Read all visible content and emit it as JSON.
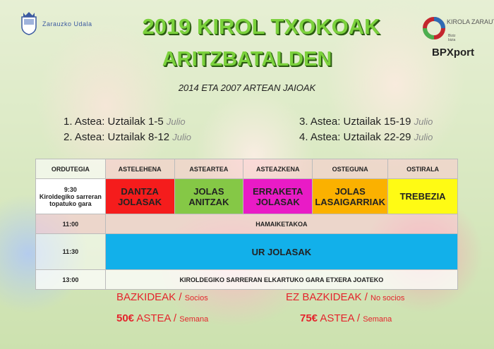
{
  "logos": {
    "left": "Zarauzko Udala",
    "right_top": "KIROLA ZARAUTZ",
    "right_sub": "Biziz bizia",
    "right_bottom": "BPXport"
  },
  "title": "2019 KIROL TXOKOAK",
  "subtitle": "ARITZBATALDEN",
  "ages": "2014 ETA 2007 ARTEAN JAIOAK",
  "weeks": [
    {
      "label": "1. Astea: Uztailak 1-5",
      "es": "Julio"
    },
    {
      "label": "2. Astea: Uztailak 8-12",
      "es": "Julio"
    },
    {
      "label": "3. Astea: Uztailak 15-19",
      "es": "Julio"
    },
    {
      "label": "4. Astea: Uztailak 22-29",
      "es": "Julio"
    }
  ],
  "table": {
    "headers": [
      "ORDUTEGIA",
      "ASTELEHENA",
      "ASTEARTEA",
      "ASTEAZKENA",
      "OSTEGUNA",
      "OSTIRALA"
    ],
    "row1": {
      "time": "9:30",
      "note": "Kiroldegiko sarreran topatuko gara",
      "activities": [
        {
          "l1": "DANTZA",
          "l2": "JOLASAK",
          "color": "#f51c1c"
        },
        {
          "l1": "JOLAS",
          "l2": "ANITZAK",
          "color": "#85c846"
        },
        {
          "l1": "ERRAKETA",
          "l2": "JOLASAK",
          "color": "#e91bc6"
        },
        {
          "l1": "JOLAS",
          "l2": "LASAIGARRIAK",
          "color": "#fbb100"
        },
        {
          "l1": "TREBEZIA",
          "l2": "",
          "color": "#fffb14"
        }
      ]
    },
    "row2": {
      "time": "11:00",
      "text": "HAMAIKETAKOA"
    },
    "row3": {
      "time": "11:30",
      "text": "UR JOLASAK",
      "color": "#12b0ea"
    },
    "row4": {
      "time": "13:00",
      "text": "KIROLDEGIKO SARRERAN ELKARTUKO GARA ETXERA JOATEKO"
    }
  },
  "prices": {
    "members": {
      "label": "BAZKIDEAK /",
      "es": "Socios",
      "price": "50€",
      "week": "ASTEA /",
      "week_es": "Semana"
    },
    "non_members": {
      "label": "EZ BAZKIDEAK /",
      "es": "No socios",
      "price": "75€",
      "week": "ASTEA /",
      "week_es": "Semana"
    }
  }
}
